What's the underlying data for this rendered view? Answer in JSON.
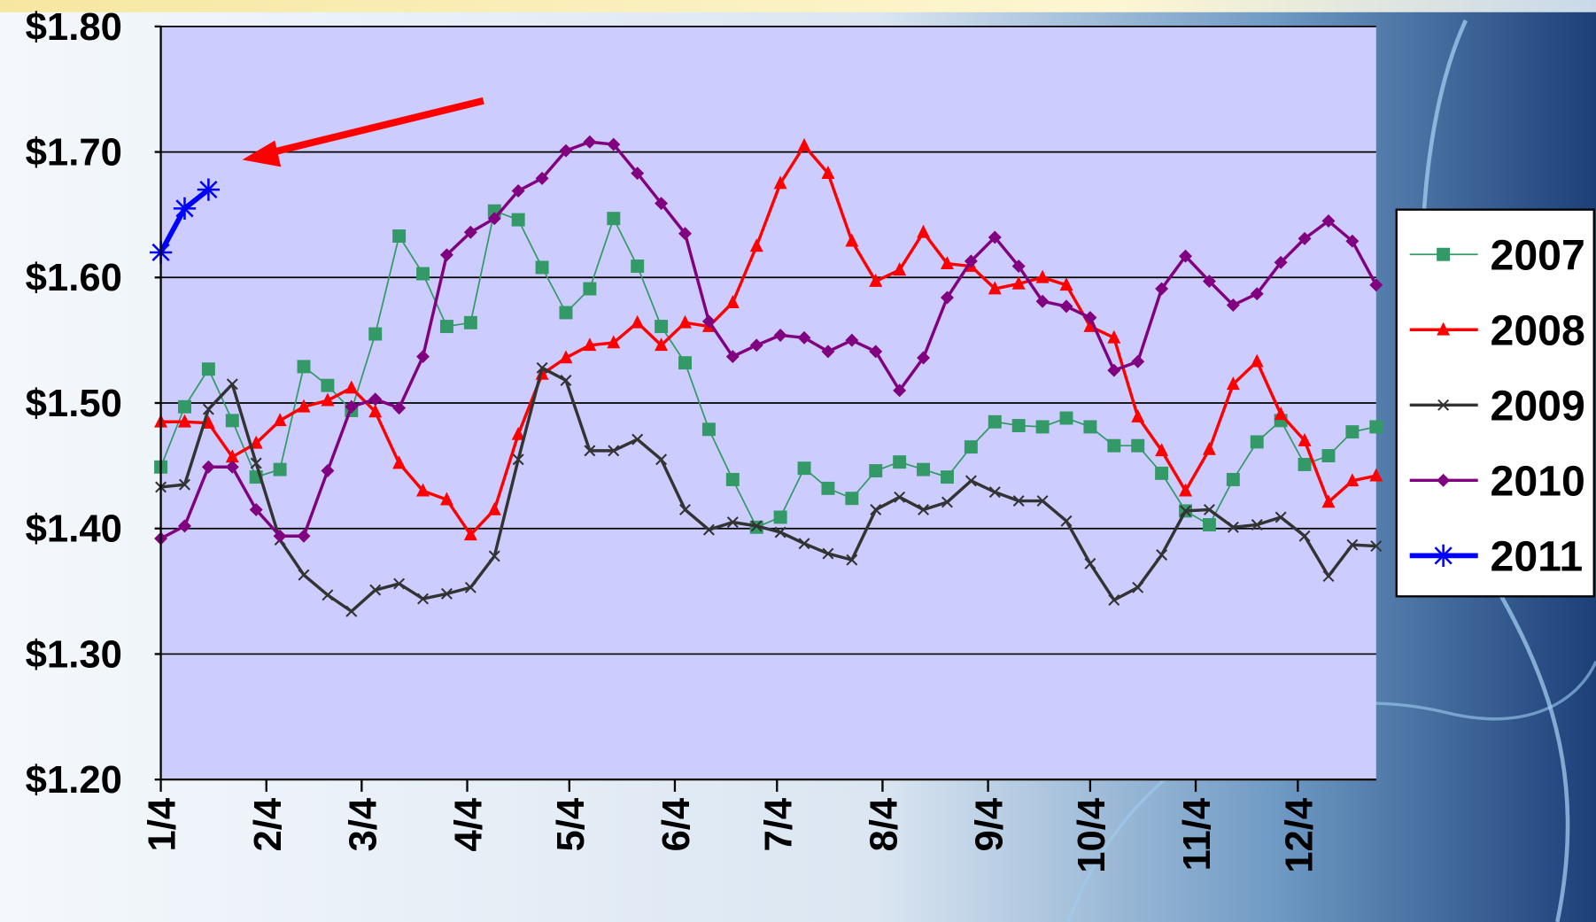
{
  "chart_data": {
    "type": "line",
    "x": [
      0,
      7,
      14,
      21,
      28,
      35,
      42,
      49,
      56,
      63,
      70,
      77,
      84,
      91,
      98,
      105,
      112,
      119,
      126,
      133,
      140,
      147,
      154,
      161,
      168,
      175,
      182,
      189,
      196,
      203,
      210,
      217,
      224,
      231,
      238,
      245,
      252,
      259,
      266,
      273,
      280,
      287,
      294,
      301,
      308,
      315,
      322,
      329,
      336,
      343,
      350,
      357
    ],
    "xlim": [
      0,
      357
    ],
    "xticks": [
      {
        "value": 0,
        "label": "1/4"
      },
      {
        "value": 31,
        "label": "2/4"
      },
      {
        "value": 59,
        "label": "3/4"
      },
      {
        "value": 90,
        "label": "4/4"
      },
      {
        "value": 120,
        "label": "5/4"
      },
      {
        "value": 151,
        "label": "6/4"
      },
      {
        "value": 181,
        "label": "7/4"
      },
      {
        "value": 212,
        "label": "8/4"
      },
      {
        "value": 243,
        "label": "9/4"
      },
      {
        "value": 273,
        "label": "10/4"
      },
      {
        "value": 304,
        "label": "11/4"
      },
      {
        "value": 334,
        "label": "12/4"
      }
    ],
    "ylim": [
      1.2,
      1.8
    ],
    "yticks": [
      {
        "value": 1.2,
        "label": "$1.20"
      },
      {
        "value": 1.3,
        "label": "$1.30"
      },
      {
        "value": 1.4,
        "label": "$1.40"
      },
      {
        "value": 1.5,
        "label": "$1.50"
      },
      {
        "value": 1.6,
        "label": "$1.60"
      },
      {
        "value": 1.7,
        "label": "$1.70"
      },
      {
        "value": 1.8,
        "label": "$1.80"
      }
    ],
    "grid": true,
    "legend": "right",
    "series": [
      {
        "name": "2007",
        "color": "#339966",
        "marker": "square",
        "values": [
          1.449,
          1.497,
          1.527,
          1.486,
          1.441,
          1.447,
          1.529,
          1.514,
          1.494,
          1.555,
          1.633,
          1.603,
          1.561,
          1.564,
          1.653,
          1.646,
          1.608,
          1.572,
          1.591,
          1.647,
          1.609,
          1.561,
          1.532,
          1.479,
          1.439,
          1.401,
          1.409,
          1.448,
          1.432,
          1.424,
          1.446,
          1.453,
          1.447,
          1.441,
          1.465,
          1.485,
          1.482,
          1.481,
          1.488,
          1.481,
          1.466,
          1.466,
          1.444,
          1.414,
          1.403,
          1.439,
          1.469,
          1.486,
          1.451,
          1.458,
          1.477,
          1.481
        ]
      },
      {
        "name": "2008",
        "color": "#ff0000",
        "marker": "triangle",
        "values": [
          1.485,
          1.485,
          1.484,
          1.457,
          1.468,
          1.486,
          1.497,
          1.502,
          1.512,
          1.493,
          1.452,
          1.43,
          1.423,
          1.395,
          1.415,
          1.475,
          1.523,
          1.536,
          1.546,
          1.548,
          1.564,
          1.546,
          1.564,
          1.561,
          1.58,
          1.625,
          1.675,
          1.705,
          1.683,
          1.629,
          1.597,
          1.606,
          1.636,
          1.611,
          1.609,
          1.591,
          1.595,
          1.6,
          1.594,
          1.561,
          1.552,
          1.489,
          1.462,
          1.43,
          1.463,
          1.515,
          1.533,
          1.491,
          1.47,
          1.421,
          1.438,
          1.442
        ]
      },
      {
        "name": "2009",
        "color": "#333333",
        "marker": "cross",
        "values": [
          1.433,
          1.435,
          1.495,
          1.515,
          1.452,
          1.391,
          1.363,
          1.347,
          1.334,
          1.351,
          1.356,
          1.344,
          1.348,
          1.353,
          1.378,
          1.455,
          1.528,
          1.518,
          1.462,
          1.462,
          1.471,
          1.455,
          1.415,
          1.399,
          1.405,
          1.402,
          1.397,
          1.388,
          1.38,
          1.375,
          1.415,
          1.425,
          1.415,
          1.421,
          1.438,
          1.429,
          1.422,
          1.422,
          1.406,
          1.372,
          1.343,
          1.353,
          1.379,
          1.414,
          1.415,
          1.401,
          1.403,
          1.409,
          1.394,
          1.362,
          1.387,
          1.386
        ]
      },
      {
        "name": "2010",
        "color": "#800080",
        "marker": "diamond",
        "values": [
          1.392,
          1.402,
          1.449,
          1.449,
          1.415,
          1.394,
          1.394,
          1.446,
          1.497,
          1.503,
          1.496,
          1.537,
          1.618,
          1.636,
          1.647,
          1.669,
          1.679,
          1.701,
          1.708,
          1.706,
          1.683,
          1.659,
          1.635,
          1.565,
          1.537,
          1.546,
          1.554,
          1.552,
          1.541,
          1.55,
          1.541,
          1.51,
          1.536,
          1.584,
          1.613,
          1.632,
          1.609,
          1.581,
          1.577,
          1.568,
          1.526,
          1.533,
          1.591,
          1.617,
          1.597,
          1.578,
          1.587,
          1.612,
          1.631,
          1.645,
          1.629,
          1.594
        ]
      },
      {
        "name": "2011",
        "color": "#0000ff",
        "marker": "star",
        "values": [
          1.62,
          1.655,
          1.67,
          null,
          null,
          null,
          null,
          null,
          null,
          null,
          null,
          null,
          null,
          null,
          null,
          null,
          null,
          null,
          null,
          null,
          null,
          null,
          null,
          null,
          null,
          null,
          null,
          null,
          null,
          null,
          null,
          null,
          null,
          null,
          null,
          null,
          null,
          null,
          null,
          null,
          null,
          null,
          null,
          null,
          null,
          null,
          null,
          null,
          null,
          null,
          null,
          null
        ]
      }
    ]
  }
}
